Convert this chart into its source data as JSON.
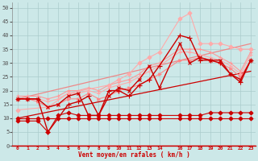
{
  "xlabel": "Vent moyen/en rafales ( km/h )",
  "bg_color": "#cce8e8",
  "grid_color": "#aacccc",
  "xlim": [
    -0.5,
    23.5
  ],
  "ylim": [
    0,
    52
  ],
  "xticks": [
    0,
    1,
    2,
    3,
    4,
    5,
    6,
    7,
    8,
    9,
    10,
    11,
    12,
    13,
    14,
    16,
    17,
    18,
    19,
    20,
    21,
    22,
    23
  ],
  "yticks": [
    0,
    5,
    10,
    15,
    20,
    25,
    30,
    35,
    40,
    45,
    50
  ],
  "lines": [
    {
      "x": [
        0,
        1,
        2,
        3,
        4,
        5,
        6,
        7,
        8,
        9,
        10,
        11,
        12,
        13,
        14,
        16,
        17,
        18,
        19,
        20,
        21,
        22,
        23
      ],
      "y": [
        10,
        10,
        10,
        10,
        10,
        10,
        10,
        10,
        10,
        10,
        10,
        10,
        10,
        10,
        10,
        10,
        10,
        10,
        10,
        10,
        10,
        10,
        10
      ],
      "color": "#cc0000",
      "marker": "D",
      "lw": 0.8,
      "ms": 2.5,
      "zorder": 3
    },
    {
      "x": [
        0,
        1,
        2,
        3,
        4,
        5,
        6,
        7,
        8,
        9,
        10,
        11,
        12,
        13,
        14,
        16,
        17,
        18,
        19,
        20,
        21,
        22,
        23
      ],
      "y": [
        9,
        9,
        9,
        5,
        11,
        12,
        11,
        11,
        11,
        11,
        11,
        11,
        11,
        11,
        11,
        11,
        11,
        11,
        12,
        12,
        12,
        12,
        12
      ],
      "color": "#cc0000",
      "marker": "D",
      "lw": 0.8,
      "ms": 2.5,
      "zorder": 3
    },
    {
      "x": [
        0,
        23
      ],
      "y": [
        10,
        27
      ],
      "color": "#cc0000",
      "marker": null,
      "lw": 0.9,
      "ms": 0,
      "zorder": 2
    },
    {
      "x": [
        0,
        23
      ],
      "y": [
        17,
        37
      ],
      "color": "#ee8888",
      "marker": null,
      "lw": 0.9,
      "ms": 0,
      "zorder": 2
    },
    {
      "x": [
        0,
        1,
        2,
        3,
        4,
        5,
        6,
        7,
        8,
        9,
        10,
        11,
        12,
        13,
        14,
        16,
        17,
        18,
        19,
        20,
        21,
        22,
        23
      ],
      "y": [
        17,
        17,
        16,
        14,
        15,
        17,
        17,
        19,
        17,
        18,
        20,
        21,
        22,
        24,
        26,
        31,
        31,
        32,
        31,
        30,
        28,
        25,
        31
      ],
      "color": "#ff8888",
      "marker": ">",
      "lw": 0.8,
      "ms": 2.5,
      "zorder": 3
    },
    {
      "x": [
        0,
        1,
        2,
        3,
        4,
        5,
        6,
        7,
        8,
        9,
        10,
        11,
        12,
        13,
        14,
        16,
        17,
        18,
        19,
        20,
        21,
        22,
        23
      ],
      "y": [
        17,
        17,
        17,
        16,
        17,
        19,
        19,
        20,
        19,
        21,
        22,
        23,
        25,
        27,
        29,
        34,
        34,
        33,
        32,
        31,
        29,
        26,
        33
      ],
      "color": "#ffaaaa",
      "marker": "+",
      "lw": 0.8,
      "ms": 3,
      "zorder": 3
    },
    {
      "x": [
        0,
        1,
        2,
        3,
        4,
        5,
        6,
        7,
        8,
        9,
        10,
        11,
        12,
        13,
        14,
        16,
        17,
        18,
        19,
        20,
        21,
        22,
        23
      ],
      "y": [
        18,
        18,
        18,
        17,
        18,
        20,
        20,
        21,
        20,
        22,
        23,
        24,
        26,
        29,
        30,
        35,
        35,
        35,
        34,
        32,
        30,
        27,
        34
      ],
      "color": "#ff9999",
      "marker": "+",
      "lw": 0.8,
      "ms": 3,
      "zorder": 3
    },
    {
      "x": [
        0,
        3,
        5,
        9,
        10,
        11,
        12,
        13,
        14,
        16,
        17,
        18,
        19,
        20,
        21,
        22,
        23
      ],
      "y": [
        13,
        14,
        19,
        22,
        24,
        26,
        30,
        32,
        34,
        46,
        48,
        37,
        37,
        37,
        36,
        35,
        35
      ],
      "color": "#ffaaaa",
      "marker": "D",
      "lw": 0.8,
      "ms": 2.5,
      "zorder": 3
    },
    {
      "x": [
        0,
        1,
        2,
        3,
        4,
        5,
        6,
        7,
        8,
        9,
        10,
        11,
        12,
        13,
        14,
        16,
        17,
        18,
        19,
        20,
        21,
        22,
        23
      ],
      "y": [
        17,
        17,
        17,
        5,
        10,
        15,
        16,
        18,
        11,
        20,
        20,
        18,
        22,
        24,
        29,
        40,
        39,
        31,
        31,
        30,
        26,
        23,
        31
      ],
      "color": "#cc0000",
      "marker": "+",
      "lw": 1.0,
      "ms": 4,
      "zorder": 4
    },
    {
      "x": [
        0,
        1,
        2,
        3,
        4,
        5,
        6,
        7,
        8,
        9,
        10,
        11,
        12,
        13,
        14,
        16,
        17,
        18,
        19,
        20,
        21,
        22,
        23
      ],
      "y": [
        17,
        17,
        17,
        14,
        15,
        18,
        19,
        11,
        11,
        18,
        21,
        20,
        24,
        29,
        21,
        37,
        30,
        32,
        31,
        31,
        26,
        24,
        31
      ],
      "color": "#cc0000",
      "marker": "x",
      "lw": 1.0,
      "ms": 3.5,
      "zorder": 4
    }
  ],
  "wind_arrows_color": "#cc0000"
}
